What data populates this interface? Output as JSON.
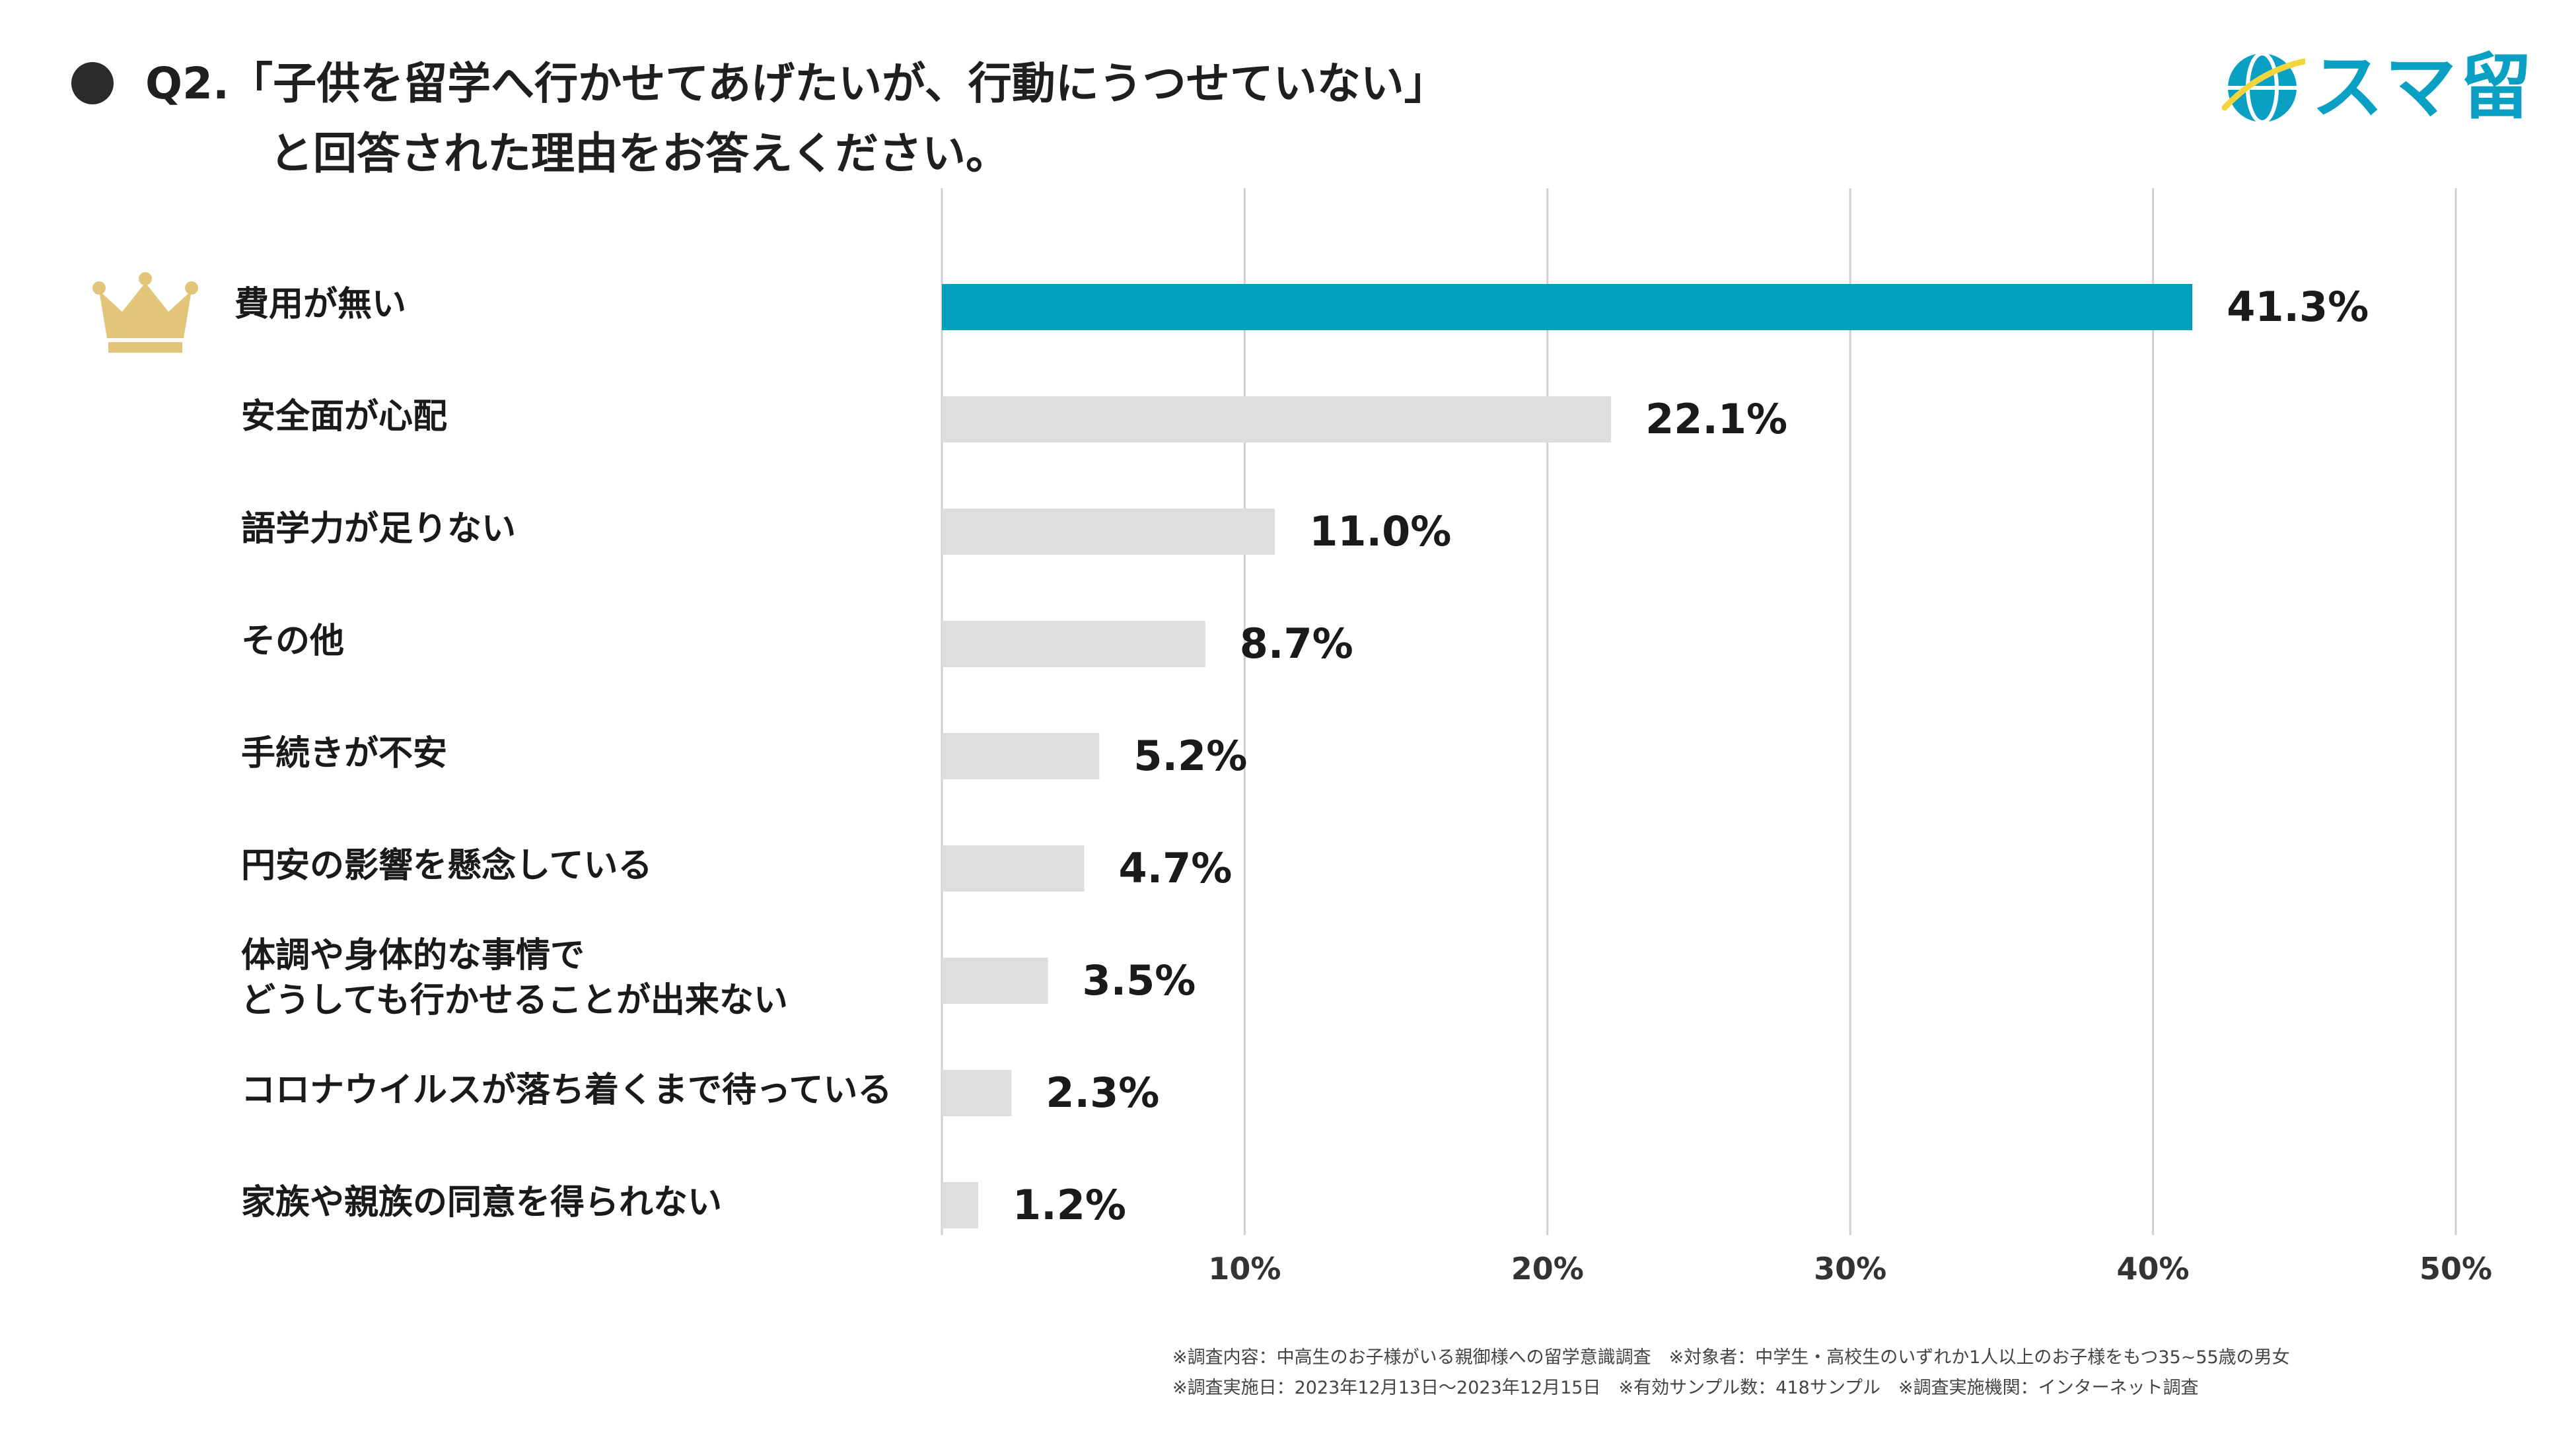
{
  "header": {
    "title_line1": "Q2.「子供を留学へ行かせてあげたいが、行動にうつせていない」",
    "title_line2": "と回答された理由をお答えください。"
  },
  "logo": {
    "text": "スマ留",
    "icon": "globe-icon",
    "color": "#0aa0c4"
  },
  "chart_data": {
    "type": "bar",
    "orientation": "horizontal",
    "categories": [
      "費用が無い",
      "安全面が心配",
      "語学力が足りない",
      "その他",
      "手続きが不安",
      "円安の影響を懸念している",
      "体調や身体的な事情で\nどうしても行かせることが出来ない",
      "コロナウイルスが落ち着くまで待っている",
      "家族や親族の同意を得られない"
    ],
    "values": [
      41.3,
      22.1,
      11.0,
      8.7,
      5.2,
      4.7,
      3.5,
      2.3,
      1.2
    ],
    "value_labels": [
      "41.3%",
      "22.1%",
      "11.0%",
      "8.7%",
      "5.2%",
      "4.7%",
      "3.5%",
      "2.3%",
      "1.2%"
    ],
    "xlim": [
      0,
      50
    ],
    "xticks": [
      10,
      20,
      30,
      40,
      50
    ],
    "xtick_labels": [
      "10%",
      "20%",
      "30%",
      "40%",
      "50%"
    ],
    "grid": true,
    "highlight_index": 0,
    "highlight_icon": "crown-icon",
    "colors": {
      "highlight": "#009fbd",
      "bar": "#dedede",
      "grid": "#cfcfcf",
      "crown": "#e3c57a"
    }
  },
  "footnotes": {
    "line1": "※調査内容：中高生のお子様がいる親御様への留学意識調査　※対象者：中学生・高校生のいずれか1人以上のお子様をもつ35~55歳の男女",
    "line2": "※調査実施日：2023年12月13日～2023年12月15日　※有効サンプル数：418サンプル　※調査実施機関：インターネット調査"
  }
}
